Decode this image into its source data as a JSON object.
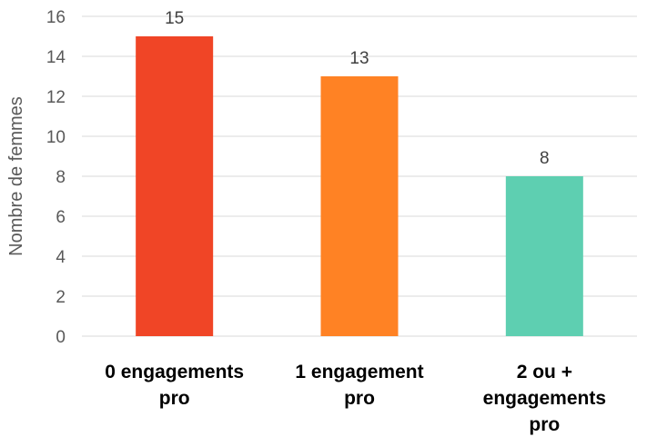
{
  "chart_data": {
    "type": "bar",
    "categories": [
      [
        "0 engagements",
        "pro"
      ],
      [
        "1 engagement",
        "pro"
      ],
      [
        "2 ou +",
        "engagements",
        "pro"
      ]
    ],
    "values": [
      15,
      13,
      8
    ],
    "data_labels": [
      "15",
      "13",
      "8"
    ],
    "colors": [
      "#F04526",
      "#FF8224",
      "#5ECFB1"
    ],
    "ylabel": "Nombre de femmes",
    "ylim": [
      0,
      16
    ],
    "yticks": [
      0,
      2,
      4,
      6,
      8,
      10,
      12,
      14,
      16
    ],
    "grid": true,
    "gridline_color": "#D9D9D9"
  }
}
